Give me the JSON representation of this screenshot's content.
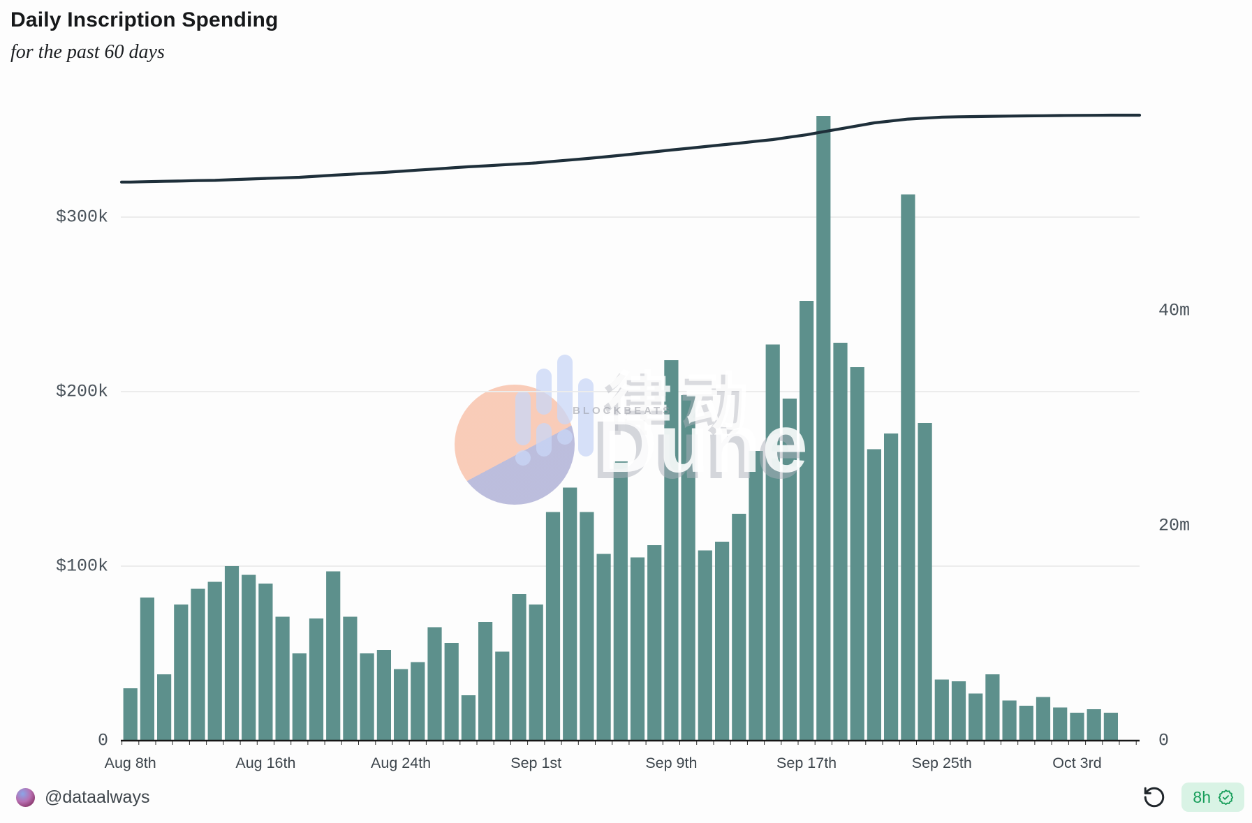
{
  "header": {
    "title": "Daily Inscription Spending",
    "subtitle": "for the past 60 days"
  },
  "footer": {
    "author_handle": "@dataalways",
    "refresh_icon": "rotate-ccw-icon",
    "age_badge": {
      "text": "8h",
      "icon": "verified-seal-check-icon"
    }
  },
  "watermark": {
    "cjk_text": "律动",
    "brand_text": "Dune",
    "sub_text": "BLOCKBEATS"
  },
  "colors": {
    "bar": "#5d908c",
    "line": "#1e2f3a",
    "grid": "#ececec",
    "baseline": "#161616",
    "tick": "#2a2a2a",
    "y_label": "#49525a",
    "x_label": "#3d454c",
    "badge_green": "#169d59",
    "badge_bg": "#d9f3e5"
  },
  "chart_data": {
    "type": "bar",
    "title": "Daily Inscription Spending",
    "subtitle": "for the past 60 days",
    "grid": "horizontal",
    "legend": "none",
    "categories": [
      "Aug 8",
      "Aug 9",
      "Aug 10",
      "Aug 11",
      "Aug 12",
      "Aug 13",
      "Aug 14",
      "Aug 15",
      "Aug 16",
      "Aug 17",
      "Aug 18",
      "Aug 19",
      "Aug 20",
      "Aug 21",
      "Aug 22",
      "Aug 23",
      "Aug 24",
      "Aug 25",
      "Aug 26",
      "Aug 27",
      "Aug 28",
      "Aug 29",
      "Aug 30",
      "Aug 31",
      "Sep 1",
      "Sep 2",
      "Sep 3",
      "Sep 4",
      "Sep 5",
      "Sep 6",
      "Sep 7",
      "Sep 8",
      "Sep 9",
      "Sep 10",
      "Sep 11",
      "Sep 12",
      "Sep 13",
      "Sep 14",
      "Sep 15",
      "Sep 16",
      "Sep 17",
      "Sep 18",
      "Sep 19",
      "Sep 20",
      "Sep 21",
      "Sep 22",
      "Sep 23",
      "Sep 24",
      "Sep 25",
      "Sep 26",
      "Sep 27",
      "Sep 28",
      "Sep 29",
      "Sep 30",
      "Oct 1",
      "Oct 2",
      "Oct 3",
      "Oct 4",
      "Oct 5"
    ],
    "series": [
      {
        "name": "daily-spending-usd-thousands",
        "type": "bar",
        "axis": "left",
        "unit": "k USD",
        "values": [
          30,
          82,
          38,
          78,
          87,
          91,
          100,
          95,
          90,
          71,
          50,
          70,
          97,
          71,
          50,
          52,
          41,
          45,
          65,
          56,
          26,
          68,
          51,
          84,
          78,
          131,
          145,
          131,
          107,
          160,
          105,
          112,
          218,
          198,
          109,
          114,
          130,
          166,
          227,
          196,
          252,
          358,
          228,
          214,
          167,
          176,
          313,
          182,
          35,
          34,
          27,
          38,
          23,
          20,
          25,
          19,
          16,
          18,
          16
        ]
      },
      {
        "name": "cumulative-inscriptions-millions",
        "type": "line",
        "axis": "right",
        "unit": "m",
        "values": [
          51.96,
          52.0,
          52.03,
          52.06,
          52.1,
          52.12,
          52.18,
          52.24,
          52.3,
          52.35,
          52.4,
          52.5,
          52.6,
          52.68,
          52.77,
          52.86,
          52.96,
          53.07,
          53.17,
          53.28,
          53.38,
          53.47,
          53.56,
          53.65,
          53.74,
          53.88,
          54.01,
          54.15,
          54.29,
          54.45,
          54.61,
          54.77,
          54.94,
          55.1,
          55.26,
          55.42,
          55.58,
          55.75,
          55.91,
          56.14,
          56.36,
          56.64,
          56.91,
          57.19,
          57.47,
          57.64,
          57.82,
          57.91,
          58.0,
          58.03,
          58.05,
          58.08,
          58.1,
          58.12,
          58.13,
          58.15,
          58.16,
          58.17,
          58.18
        ]
      }
    ],
    "left_axis": {
      "tick_labels": [
        "0",
        "$100k",
        "$200k",
        "$300k"
      ],
      "tick_values": [
        0,
        100,
        200,
        300
      ],
      "range": [
        0,
        380
      ]
    },
    "right_axis": {
      "tick_labels": [
        "0",
        "20m",
        "40m"
      ],
      "tick_values": [
        0,
        20,
        40
      ],
      "range": [
        0,
        62
      ]
    },
    "x_axis": {
      "tick_labels": [
        "Aug 8th",
        "Aug 16th",
        "Aug 24th",
        "Sep 1st",
        "Sep 9th",
        "Sep 17th",
        "Sep 25th",
        "Oct 3rd"
      ],
      "tick_indices": [
        0,
        8,
        16,
        24,
        32,
        40,
        48,
        56
      ]
    }
  }
}
